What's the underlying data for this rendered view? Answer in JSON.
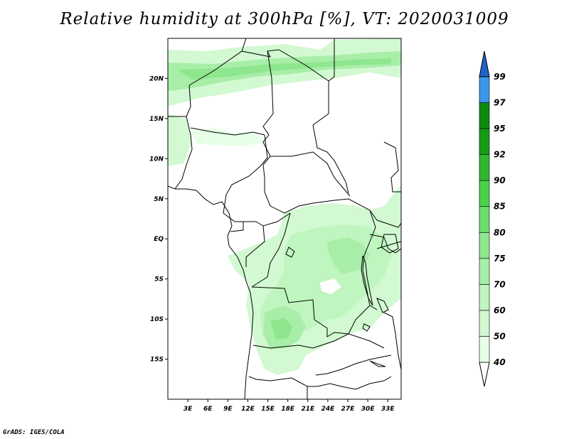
{
  "title": "Relative humidity at 300hPa [%], VT: 2020031009",
  "credit": "GrADS: IGES/COLA",
  "map": {
    "lon_range": [
      0,
      35
    ],
    "lat_range": [
      -20,
      25
    ],
    "lat_ticks": [
      {
        "value": 20,
        "label": "20N"
      },
      {
        "value": 15,
        "label": "15N"
      },
      {
        "value": 10,
        "label": "10N"
      },
      {
        "value": 5,
        "label": "5N"
      },
      {
        "value": 0,
        "label": "EQ"
      },
      {
        "value": -5,
        "label": "5S"
      },
      {
        "value": -10,
        "label": "10S"
      },
      {
        "value": -15,
        "label": "15S"
      }
    ],
    "lon_ticks": [
      {
        "value": 3,
        "label": "3E"
      },
      {
        "value": 6,
        "label": "6E"
      },
      {
        "value": 9,
        "label": "9E"
      },
      {
        "value": 12,
        "label": "12E"
      },
      {
        "value": 15,
        "label": "15E"
      },
      {
        "value": 18,
        "label": "18E"
      },
      {
        "value": 21,
        "label": "21E"
      },
      {
        "value": 24,
        "label": "24E"
      },
      {
        "value": 27,
        "label": "27E"
      },
      {
        "value": 30,
        "label": "30E"
      },
      {
        "value": 33,
        "label": "33E"
      }
    ]
  },
  "colorbar": {
    "levels": [
      {
        "label": "40",
        "color": "#e6ffe6"
      },
      {
        "label": "50",
        "color": "#d2f9d2"
      },
      {
        "label": "60",
        "color": "#bff5bf"
      },
      {
        "label": "70",
        "color": "#a8eea8"
      },
      {
        "label": "75",
        "color": "#8ee68e"
      },
      {
        "label": "80",
        "color": "#6cdc6c"
      },
      {
        "label": "85",
        "color": "#4cd04c"
      },
      {
        "label": "90",
        "color": "#2fb82f"
      },
      {
        "label": "92",
        "color": "#159c15"
      },
      {
        "label": "95",
        "color": "#0f8a0f"
      },
      {
        "label": "97",
        "color": "#3c96e6"
      },
      {
        "label": "99",
        "color": "#1e6ed2"
      }
    ],
    "top_color": "#1e64c8"
  }
}
